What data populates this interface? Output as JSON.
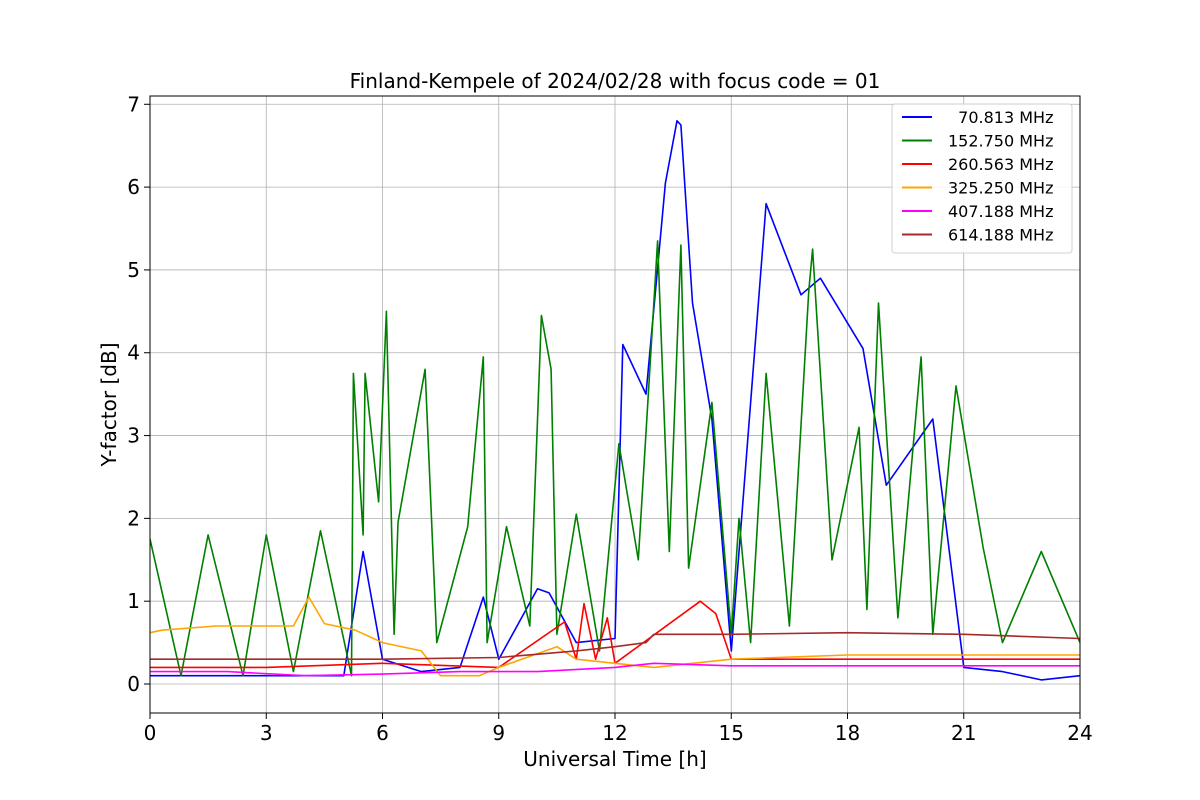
{
  "chart_data": {
    "type": "line",
    "title": "Finland-Kempele of 2024/02/28 with focus code = 01",
    "xlabel": "Universal Time [h]",
    "ylabel": "Y-factor [dB]",
    "xlim": [
      0,
      24
    ],
    "ylim": [
      -0.35,
      7.1
    ],
    "xticks": [
      0,
      3,
      6,
      9,
      12,
      15,
      18,
      21,
      24
    ],
    "yticks": [
      0,
      1,
      2,
      3,
      4,
      5,
      6,
      7
    ],
    "grid": true,
    "legend_position": "top-right",
    "series": [
      {
        "name": "  70.813 MHz",
        "color": "#0000ff",
        "values": [
          [
            0,
            0.1
          ],
          [
            1,
            0.1
          ],
          [
            2,
            0.1
          ],
          [
            3,
            0.1
          ],
          [
            4,
            0.1
          ],
          [
            5,
            0.1
          ],
          [
            5.5,
            1.6
          ],
          [
            6,
            0.3
          ],
          [
            7,
            0.15
          ],
          [
            8,
            0.2
          ],
          [
            8.6,
            1.05
          ],
          [
            9,
            0.3
          ],
          [
            10,
            1.15
          ],
          [
            10.3,
            1.1
          ],
          [
            11,
            0.5
          ],
          [
            12,
            0.55
          ],
          [
            12.2,
            4.1
          ],
          [
            12.8,
            3.5
          ],
          [
            13.3,
            6.05
          ],
          [
            13.6,
            6.8
          ],
          [
            13.7,
            6.75
          ],
          [
            14,
            4.6
          ],
          [
            14.5,
            3.2
          ],
          [
            15,
            0.4
          ],
          [
            15.9,
            5.8
          ],
          [
            16.8,
            4.7
          ],
          [
            17.3,
            4.9
          ],
          [
            18.4,
            4.05
          ],
          [
            19,
            2.4
          ],
          [
            20.2,
            3.2
          ],
          [
            21,
            0.2
          ],
          [
            22,
            0.15
          ],
          [
            23,
            0.05
          ],
          [
            24,
            0.1
          ]
        ]
      },
      {
        "name": "152.750 MHz",
        "color": "#008000",
        "values": [
          [
            0,
            1.75
          ],
          [
            0.8,
            0.1
          ],
          [
            1.5,
            1.8
          ],
          [
            2.4,
            0.1
          ],
          [
            3,
            1.8
          ],
          [
            3.7,
            0.15
          ],
          [
            4.4,
            1.85
          ],
          [
            5.2,
            0.1
          ],
          [
            5.25,
            3.75
          ],
          [
            5.5,
            1.8
          ],
          [
            5.55,
            3.75
          ],
          [
            5.9,
            2.2
          ],
          [
            6.1,
            4.5
          ],
          [
            6.3,
            0.6
          ],
          [
            6.4,
            1.95
          ],
          [
            7.1,
            3.8
          ],
          [
            7.4,
            0.5
          ],
          [
            8.2,
            1.9
          ],
          [
            8.6,
            3.95
          ],
          [
            8.7,
            0.5
          ],
          [
            9.2,
            1.9
          ],
          [
            9.8,
            0.7
          ],
          [
            10.1,
            4.45
          ],
          [
            10.35,
            3.8
          ],
          [
            10.5,
            0.6
          ],
          [
            11,
            2.05
          ],
          [
            11.6,
            0.4
          ],
          [
            12.1,
            2.9
          ],
          [
            12.6,
            1.5
          ],
          [
            13.1,
            5.35
          ],
          [
            13.4,
            1.6
          ],
          [
            13.7,
            5.3
          ],
          [
            13.9,
            1.4
          ],
          [
            14.5,
            3.4
          ],
          [
            15,
            0.6
          ],
          [
            15.2,
            2.0
          ],
          [
            15.5,
            0.5
          ],
          [
            15.9,
            3.75
          ],
          [
            16.5,
            0.7
          ],
          [
            17.0,
            4.75
          ],
          [
            17.1,
            5.25
          ],
          [
            17.6,
            1.5
          ],
          [
            18.3,
            3.1
          ],
          [
            18.5,
            0.9
          ],
          [
            18.8,
            4.6
          ],
          [
            19.3,
            0.8
          ],
          [
            19.9,
            3.95
          ],
          [
            20.2,
            0.6
          ],
          [
            20.8,
            3.6
          ],
          [
            21.5,
            1.65
          ],
          [
            22,
            0.5
          ],
          [
            23,
            1.6
          ],
          [
            24,
            0.5
          ]
        ]
      },
      {
        "name": "260.563 MHz",
        "color": "#ff0000",
        "values": [
          [
            0,
            0.2
          ],
          [
            3,
            0.2
          ],
          [
            6,
            0.25
          ],
          [
            9,
            0.2
          ],
          [
            10.7,
            0.75
          ],
          [
            11,
            0.3
          ],
          [
            11.2,
            0.97
          ],
          [
            11.5,
            0.3
          ],
          [
            11.8,
            0.8
          ],
          [
            12,
            0.25
          ],
          [
            14.2,
            1.0
          ],
          [
            14.6,
            0.85
          ],
          [
            15,
            0.3
          ],
          [
            18,
            0.3
          ],
          [
            21,
            0.3
          ],
          [
            24,
            0.3
          ]
        ]
      },
      {
        "name": "325.250 MHz",
        "color": "#ffa500",
        "values": [
          [
            0,
            0.62
          ],
          [
            0.3,
            0.65
          ],
          [
            1.7,
            0.7
          ],
          [
            2.9,
            0.7
          ],
          [
            3.7,
            0.7
          ],
          [
            4.1,
            1.05
          ],
          [
            4.5,
            0.73
          ],
          [
            5.3,
            0.65
          ],
          [
            6,
            0.5
          ],
          [
            7,
            0.4
          ],
          [
            7.5,
            0.1
          ],
          [
            8.5,
            0.1
          ],
          [
            9,
            0.2
          ],
          [
            10.5,
            0.45
          ],
          [
            11,
            0.3
          ],
          [
            12,
            0.25
          ],
          [
            13,
            0.2
          ],
          [
            15,
            0.3
          ],
          [
            18,
            0.35
          ],
          [
            21,
            0.35
          ],
          [
            24,
            0.35
          ]
        ]
      },
      {
        "name": "407.188 MHz",
        "color": "#ff00ff",
        "values": [
          [
            0,
            0.15
          ],
          [
            2,
            0.15
          ],
          [
            4,
            0.1
          ],
          [
            6,
            0.12
          ],
          [
            8,
            0.15
          ],
          [
            10,
            0.15
          ],
          [
            12,
            0.2
          ],
          [
            13,
            0.25
          ],
          [
            15,
            0.22
          ],
          [
            18,
            0.22
          ],
          [
            21,
            0.22
          ],
          [
            24,
            0.22
          ]
        ]
      },
      {
        "name": "614.188 MHz",
        "color": "#a52a2a",
        "values": [
          [
            0,
            0.3
          ],
          [
            3,
            0.3
          ],
          [
            6,
            0.3
          ],
          [
            9,
            0.32
          ],
          [
            11,
            0.4
          ],
          [
            12,
            0.45
          ],
          [
            12.8,
            0.5
          ],
          [
            13,
            0.6
          ],
          [
            15,
            0.6
          ],
          [
            18,
            0.62
          ],
          [
            21,
            0.6
          ],
          [
            24,
            0.55
          ]
        ]
      }
    ]
  }
}
